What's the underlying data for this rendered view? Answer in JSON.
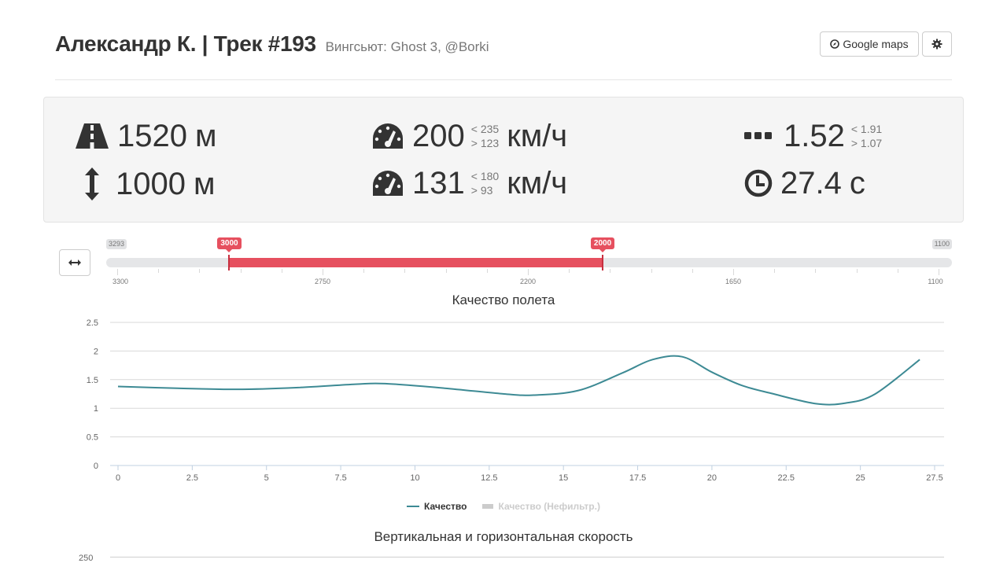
{
  "header": {
    "title": "Александр К. | Трек #193",
    "subtitle": "Вингсьют: Ghost 3, @Borki",
    "maps_button": "Google maps"
  },
  "stats": {
    "distance": {
      "value": "1520",
      "unit": "м"
    },
    "height": {
      "value": "1000",
      "unit": "м"
    },
    "h_speed": {
      "value": "200",
      "max": "< 235",
      "min": "> 123",
      "unit": "км/ч"
    },
    "v_speed": {
      "value": "131",
      "max": "< 180",
      "min": "> 93",
      "unit": "км/ч"
    },
    "glide": {
      "value": "1.52",
      "max": "< 1.91",
      "min": "> 1.07"
    },
    "time": {
      "value": "27.4",
      "unit": "с"
    }
  },
  "range_slider": {
    "min_label": "3293",
    "max_label": "1100",
    "from_label": "3000",
    "to_label": "2000",
    "min_value": 3293,
    "max_value": 1100,
    "from_value": 3000,
    "to_value": 2000,
    "tick_labels": [
      "3300",
      "2750",
      "2200",
      "1650",
      "1100"
    ],
    "tick_values": [
      3300,
      2750,
      2200,
      1650,
      1100
    ]
  },
  "quality_chart": {
    "chart_data": {
      "type": "line",
      "title": "Качество полета",
      "xlim": [
        0,
        27.5
      ],
      "ylim": [
        0,
        2.5
      ],
      "xticks": [
        "0",
        "2.5",
        "5",
        "7.5",
        "10",
        "12.5",
        "15",
        "17.5",
        "20",
        "22.5",
        "25",
        "27.5"
      ],
      "xtick_values": [
        0,
        2.5,
        5,
        7.5,
        10,
        12.5,
        15,
        17.5,
        20,
        22.5,
        25,
        27.5
      ],
      "yticks": [
        "0",
        "0.5",
        "1",
        "1.5",
        "2",
        "2.5"
      ],
      "ytick_values": [
        0,
        0.5,
        1,
        1.5,
        2,
        2.5
      ],
      "grid": true,
      "legend_position": "bottom",
      "series": [
        {
          "name": "Качество",
          "color": "#3d8a94",
          "x": [
            0,
            2,
            4,
            6,
            8,
            9,
            11,
            13,
            14,
            15.5,
            17,
            18,
            19,
            20,
            21,
            22,
            23.5,
            24.5,
            25.5,
            27
          ],
          "y": [
            1.38,
            1.35,
            1.33,
            1.36,
            1.42,
            1.43,
            1.35,
            1.25,
            1.23,
            1.31,
            1.62,
            1.85,
            1.9,
            1.63,
            1.4,
            1.26,
            1.08,
            1.09,
            1.25,
            1.85
          ]
        },
        {
          "name": "Качество (Нефильтр.)",
          "color": "#cccccc",
          "hidden": true
        }
      ]
    }
  },
  "speed_chart": {
    "title": "Вертикальная и горизонтальная скорость",
    "first_ytick": "250"
  },
  "icons": {
    "distance": "road-icon",
    "height": "vertical-arrows-icon",
    "speed": "dashboard-icon",
    "glide": "ellipsis-icon",
    "time": "clock-icon",
    "maps": "compass-icon",
    "settings": "gear-icon",
    "reset": "horizontal-arrows-icon"
  }
}
